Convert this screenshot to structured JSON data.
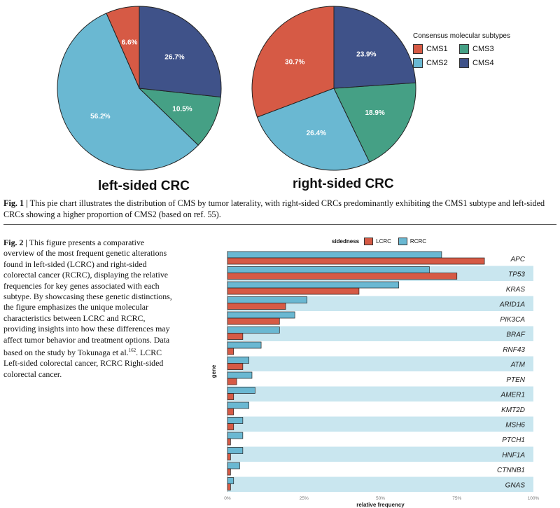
{
  "figure1": {
    "legend_title": "Consensus molecular subtypes",
    "caption_label": "Fig. 1 |",
    "caption_text": " This pie chart illustrates the distribution of CMS by tumor laterality, with right-sided CRCs predominantly exhibiting the CMS1 subtype and left-sided CRCs showing a higher proportion of CMS2 (based on ref. 55)."
  },
  "figure2": {
    "caption_label": "Fig. 2 |",
    "caption_text": " This figure presents a comparative overview of the most frequent genetic alterations found in left-sided (LCRC) and right-sided colorectal cancer (RCRC), displaying the relative frequencies for key genes associated with each subtype. By showcasing these genetic distinctions, the figure emphasizes the unique molecular characteristics between LCRC and RCRC, providing insights into how these differences may affect tumor behavior and treatment options. Data based on the study by Tokunaga et al.",
    "caption_ref": "162",
    "caption_tail": ". LCRC Left-sided colorectal cancer, RCRC Right-sided colorectal cancer.",
    "legend_title": "sidedness"
  },
  "colors": {
    "CMS1": "#d65a45",
    "CMS2": "#6ab8d2",
    "CMS3": "#45a085",
    "CMS4": "#3f5289",
    "LCRC": "#d65a45",
    "RCRC": "#6ab8d2",
    "band": "#c9e6ef"
  },
  "chart_data": [
    {
      "type": "pie",
      "title": "left-sided CRC",
      "categories": [
        "CMS1",
        "CMS2",
        "CMS3",
        "CMS4"
      ],
      "values": [
        6.6,
        56.2,
        10.5,
        26.7
      ],
      "labels": [
        "6.6%",
        "56.2%",
        "10.5%",
        "26.7%"
      ],
      "legend": "top-right"
    },
    {
      "type": "pie",
      "title": "right-sided CRC",
      "categories": [
        "CMS1",
        "CMS2",
        "CMS3",
        "CMS4"
      ],
      "values": [
        30.7,
        26.4,
        18.9,
        23.9
      ],
      "labels": [
        "30.7%",
        "26.4%",
        "18.9%",
        "23.9%"
      ],
      "legend": "top-right"
    },
    {
      "type": "bar",
      "orientation": "horizontal",
      "xlabel": "relative frequency",
      "ylabel": "gene",
      "xlim": [
        0,
        100
      ],
      "xticks": [
        "0%",
        "25%",
        "50%",
        "75%",
        "100%"
      ],
      "legend": "top",
      "categories": [
        "APC",
        "TP53",
        "KRAS",
        "ARID1A",
        "PIK3CA",
        "BRAF",
        "RNF43",
        "ATM",
        "PTEN",
        "AMER1",
        "KMT2D",
        "MSH6",
        "PTCH1",
        "HNF1A",
        "CTNNB1",
        "GNAS"
      ],
      "series": [
        {
          "name": "RCRC",
          "values": [
            70,
            66,
            56,
            26,
            22,
            17,
            11,
            7,
            8,
            9,
            7,
            5,
            5,
            5,
            4,
            2
          ]
        },
        {
          "name": "LCRC",
          "values": [
            84,
            75,
            43,
            19,
            17,
            5,
            2,
            5,
            3,
            2,
            2,
            2,
            1,
            1,
            1,
            1
          ]
        }
      ]
    }
  ]
}
